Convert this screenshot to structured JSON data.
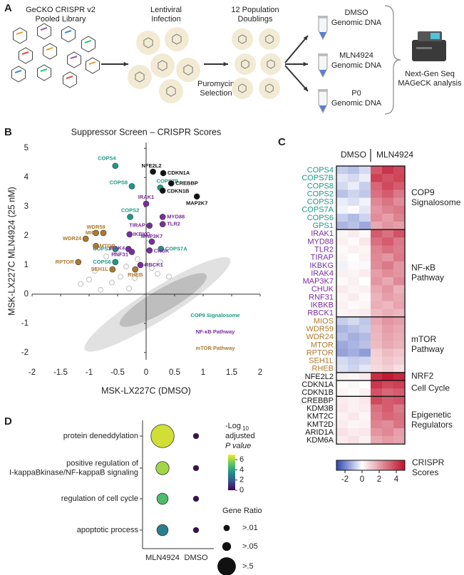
{
  "panel_labels": [
    "A",
    "B",
    "C",
    "D"
  ],
  "diagram": {
    "library": [
      "GeCKO CRISPR v2",
      "Pooled Library"
    ],
    "infection": [
      "Lentiviral",
      "Infection"
    ],
    "doublings": [
      "12 Population",
      "Doublings"
    ],
    "selection": [
      "Puromycin",
      "Selection"
    ],
    "samples": [
      [
        "DMSO",
        "Genomic DNA"
      ],
      [
        "MLN4924",
        "Genomic DNA"
      ],
      [
        "P0",
        "Genomic DNA"
      ]
    ],
    "analysis": [
      "Next-Gen Seq",
      "MAGeCK analysis"
    ]
  },
  "chart_data": [
    {
      "type": "scatter",
      "title": "Suppressor Screen – CRISPR Scores",
      "x_label": "MSK-LX227C (DMSO)",
      "y_label": "MSK-LX227C MLN4924 (25 nM)",
      "xlim": [
        -2,
        2
      ],
      "ylim": [
        -2.25,
        5.2
      ],
      "xticks": [
        -2,
        -1.5,
        -1,
        -0.5,
        0,
        0.5,
        1,
        1.5,
        2
      ],
      "yticks": [
        -2,
        -1,
        0,
        1,
        2,
        3,
        4,
        5
      ],
      "series": [
        {
          "color": "#c8c8c8",
          "x": [
            -0.15,
            -0.35,
            -0.45,
            -0.6,
            -0.9,
            -1.0,
            -0.2,
            0.1,
            0.25,
            0.2,
            -0.7,
            -1.15,
            -0.5,
            0.05,
            0.4,
            -0.3,
            -0.8
          ],
          "values": [
            1.2,
            0.95,
            0.6,
            0.4,
            0.8,
            0.5,
            0.55,
            0.9,
            1.1,
            0.7,
            1.3,
            0.35,
            1.4,
            1.9,
            0.6,
            0.2,
            0.15
          ]
        },
        {
          "color": "#1a9a86",
          "labels": [
            "COPS4",
            "COPS8",
            "COPS7B",
            "COPS2",
            "COPS7A",
            "COPS3",
            "COPS6"
          ],
          "x": [
            -0.54,
            -0.25,
            0.25,
            -0.28,
            0.26,
            -0.54,
            -0.54
          ],
          "values": [
            4.4,
            3.7,
            3.65,
            2.65,
            1.55,
            1.55,
            1.1
          ]
        },
        {
          "color": "#111111",
          "labels": [
            "NFE2L2",
            "CDKN1A",
            "CREBBP",
            "CDKN1B",
            "MAP2K7"
          ],
          "x": [
            0.12,
            0.3,
            0.44,
            0.29,
            0.89
          ],
          "values": [
            4.2,
            4.15,
            3.8,
            3.55,
            3.35
          ]
        },
        {
          "color": "#7b2d9e",
          "labels": [
            "IRAK1",
            "MYD88",
            "TIRAP",
            "TLR2",
            "IKBKG",
            "MAP3K7",
            "IRAK4",
            "RNF31",
            "CHUK",
            "RBCK1"
          ],
          "x": [
            0.0,
            0.29,
            0.06,
            0.29,
            -0.29,
            0.1,
            -0.31,
            -0.25,
            0.06,
            -0.1
          ],
          "values": [
            3.1,
            2.65,
            2.35,
            2.4,
            2.05,
            1.8,
            1.55,
            1.45,
            1.5,
            1.0
          ]
        },
        {
          "color": "#ad7a2c",
          "labels": [
            "MIOS",
            "WDR59",
            "WDR24",
            "MTOR",
            "RPTOR",
            "SEH1L",
            "RHEB"
          ],
          "x": [
            -0.75,
            -0.88,
            -1.06,
            -0.88,
            -1.19,
            -0.59,
            -0.19
          ],
          "values": [
            2.1,
            2.1,
            1.9,
            1.65,
            1.1,
            0.85,
            0.85
          ]
        }
      ],
      "annotations": [
        {
          "text": "COP9 Signalosome",
          "color": "#1a9a86"
        },
        {
          "text": "NF-κB Pathway",
          "color": "#7b2d9e"
        },
        {
          "text": "mTOR Pathway",
          "color": "#ad7a2c"
        }
      ]
    },
    {
      "type": "heatmap",
      "column_groups": [
        "DMSO",
        "MLN4924"
      ],
      "zlim": [
        -3,
        5
      ],
      "zticks": [
        -2,
        0,
        2,
        4
      ],
      "colorbar_label": [
        "CRISPR",
        "Scores"
      ],
      "groups": [
        {
          "label": [
            "COP9",
            "Signalosome"
          ],
          "color": "#1a9a86",
          "rows": [
            {
              "name": "COPS4",
              "values": [
                -0.8,
                -1.0,
                -0.6,
                3.5,
                4.2,
                3.8
              ]
            },
            {
              "name": "COPS7B",
              "values": [
                -0.4,
                -0.6,
                -0.3,
                4.0,
                3.6,
                3.9
              ]
            },
            {
              "name": "COPS8",
              "values": [
                -0.6,
                -0.3,
                -0.8,
                3.2,
                3.8,
                3.4
              ]
            },
            {
              "name": "COPS2",
              "values": [
                -1.0,
                -0.7,
                -0.9,
                3.0,
                3.4,
                2.8
              ]
            },
            {
              "name": "COPS3",
              "values": [
                -0.3,
                -0.5,
                -0.2,
                2.5,
                2.9,
                2.4
              ]
            },
            {
              "name": "COPS7A",
              "values": [
                -0.2,
                0.1,
                -0.4,
                2.2,
                2.6,
                2.8
              ]
            },
            {
              "name": "COPS6",
              "values": [
                -0.8,
                -1.1,
                -0.7,
                2.4,
                2.0,
                2.6
              ]
            },
            {
              "name": "GPS1",
              "values": [
                -1.2,
                -1.0,
                -1.4,
                1.8,
                2.2,
                2.0
              ]
            }
          ]
        },
        {
          "label": [
            "NF-κB",
            "Pathway"
          ],
          "color": "#7b2d9e",
          "rows": [
            {
              "name": "IRAK1",
              "values": [
                0.2,
                0.4,
                0.1,
                3.4,
                3.0,
                3.6
              ]
            },
            {
              "name": "MYD88",
              "values": [
                0.3,
                0.1,
                0.5,
                3.0,
                3.4,
                2.8
              ]
            },
            {
              "name": "TLR2",
              "values": [
                0.1,
                0.3,
                0.2,
                2.6,
                3.0,
                2.7
              ]
            },
            {
              "name": "TIRAP",
              "values": [
                0.2,
                0.0,
                0.3,
                2.5,
                2.2,
                2.8
              ]
            },
            {
              "name": "IKBKG",
              "values": [
                -0.2,
                0.1,
                -0.1,
                2.4,
                2.8,
                2.2
              ]
            },
            {
              "name": "IRAK4",
              "values": [
                0.3,
                0.2,
                0.4,
                2.0,
                2.4,
                2.2
              ]
            },
            {
              "name": "MAP3K7",
              "values": [
                0.1,
                0.3,
                0.0,
                2.2,
                1.8,
                2.5
              ]
            },
            {
              "name": "CHUK",
              "values": [
                0.4,
                0.2,
                0.3,
                1.8,
                2.2,
                1.6
              ]
            },
            {
              "name": "RNF31",
              "values": [
                0.2,
                0.4,
                0.1,
                1.6,
                2.0,
                1.8
              ]
            },
            {
              "name": "IKBKB",
              "values": [
                0.3,
                0.1,
                0.2,
                1.7,
                1.5,
                1.9
              ]
            },
            {
              "name": "RBCK1",
              "values": [
                0.2,
                0.3,
                0.4,
                1.4,
                1.7,
                1.5
              ]
            }
          ]
        },
        {
          "label": [
            "mTOR",
            "Pathway"
          ],
          "color": "#ad7a2c",
          "rows": [
            {
              "name": "MIOS",
              "values": [
                -0.8,
                -0.6,
                -0.9,
                1.8,
                2.2,
                2.0
              ]
            },
            {
              "name": "WDR59",
              "values": [
                -1.2,
                -1.0,
                -0.8,
                1.6,
                2.0,
                1.8
              ]
            },
            {
              "name": "WDR24",
              "values": [
                -1.0,
                -1.3,
                -1.1,
                1.5,
                1.9,
                1.7
              ]
            },
            {
              "name": "MTOR",
              "values": [
                -1.4,
                -1.2,
                -1.0,
                1.4,
                1.8,
                1.6
              ]
            },
            {
              "name": "RPTOR",
              "values": [
                -1.5,
                -1.3,
                -1.6,
                1.0,
                1.4,
                1.2
              ]
            },
            {
              "name": "SEH1L",
              "values": [
                -0.6,
                -0.8,
                -0.7,
                0.9,
                1.2,
                1.0
              ]
            },
            {
              "name": "RHEB",
              "values": [
                -0.5,
                -0.7,
                -0.4,
                0.8,
                1.0,
                0.7
              ]
            }
          ]
        },
        {
          "label": [
            "NRF2"
          ],
          "color": "#111111",
          "rows": [
            {
              "name": "NFE2L2",
              "values": [
                0.3,
                0.2,
                0.4,
                4.4,
                4.8,
                4.5
              ]
            }
          ]
        },
        {
          "label": [
            "Cell Cycle"
          ],
          "color": "#111111",
          "rows": [
            {
              "name": "CDKN1A",
              "values": [
                0.1,
                0.2,
                0.0,
                4.2,
                3.8,
                4.0
              ]
            },
            {
              "name": "CDKN1B",
              "values": [
                0.2,
                0.1,
                0.3,
                3.6,
                3.2,
                3.4
              ]
            }
          ]
        },
        {
          "label": [
            "Epigenetic",
            "Regulators"
          ],
          "color": "#111111",
          "rows": [
            {
              "name": "CREBBP",
              "values": [
                0.4,
                0.3,
                0.5,
                3.8,
                3.4,
                3.6
              ]
            },
            {
              "name": "KDM3B",
              "values": [
                0.5,
                0.3,
                0.4,
                3.0,
                3.4,
                2.8
              ]
            },
            {
              "name": "KMT2C",
              "values": [
                0.3,
                0.5,
                0.2,
                2.8,
                3.2,
                3.0
              ]
            },
            {
              "name": "KMT2D",
              "values": [
                0.4,
                0.2,
                0.3,
                2.6,
                2.4,
                2.9
              ]
            },
            {
              "name": "ARID1A",
              "values": [
                0.6,
                0.4,
                0.5,
                2.2,
                2.5,
                2.0
              ]
            },
            {
              "name": "KDM6A",
              "values": [
                0.4,
                0.6,
                0.3,
                1.8,
                2.1,
                1.9
              ]
            }
          ]
        }
      ]
    },
    {
      "type": "bubble",
      "categories": [
        [
          "protein deneddylation"
        ],
        [
          "positive regulation of",
          "I-kappaBkinase/NF-kappaB signaling"
        ],
        [
          "regulation of cell cycle"
        ],
        [
          "apoptotic process"
        ]
      ],
      "series": [
        {
          "name": "MLN4924",
          "values": [
            6.5,
            6.0,
            4.8,
            3.0
          ],
          "sizes": [
            0.9,
            0.2,
            0.12,
            0.12
          ]
        },
        {
          "name": "DMSO",
          "values": [
            0.2,
            0.2,
            0.2,
            0.2
          ],
          "sizes": [
            0.003,
            0.003,
            0.003,
            0.003
          ]
        }
      ],
      "colorbar_title": [
        "-Log",
        "10",
        "adjusted",
        "P value"
      ],
      "clim": [
        0,
        7
      ],
      "cticks": [
        0,
        2,
        4,
        6
      ],
      "size_title": "Gene Ratio",
      "size_legend": [
        {
          "value": 0.01,
          "label": ">.01"
        },
        {
          "value": 0.05,
          "label": ">.05"
        },
        {
          "value": 0.5,
          "label": ">.5"
        }
      ]
    }
  ]
}
